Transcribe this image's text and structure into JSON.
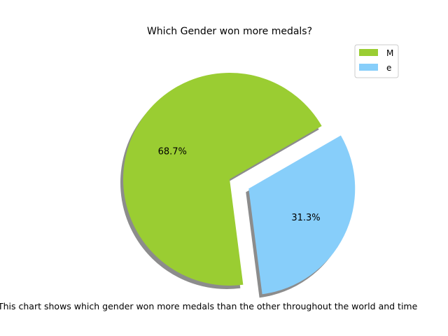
{
  "chart_data": {
    "type": "pie",
    "title": "Which Gender won more medals?",
    "categories": [
      "M",
      "e"
    ],
    "values": [
      68.7,
      31.3
    ],
    "value_labels": [
      "68.7%",
      "31.3%"
    ],
    "colors": [
      "#9acd32",
      "#87cefa"
    ],
    "explode": [
      0,
      1
    ],
    "shadow": true,
    "legend": {
      "entries": [
        "M",
        "e"
      ],
      "placement": "top-right"
    },
    "caption": "This chart shows which gender won more medals than the other throughout the world and time"
  }
}
